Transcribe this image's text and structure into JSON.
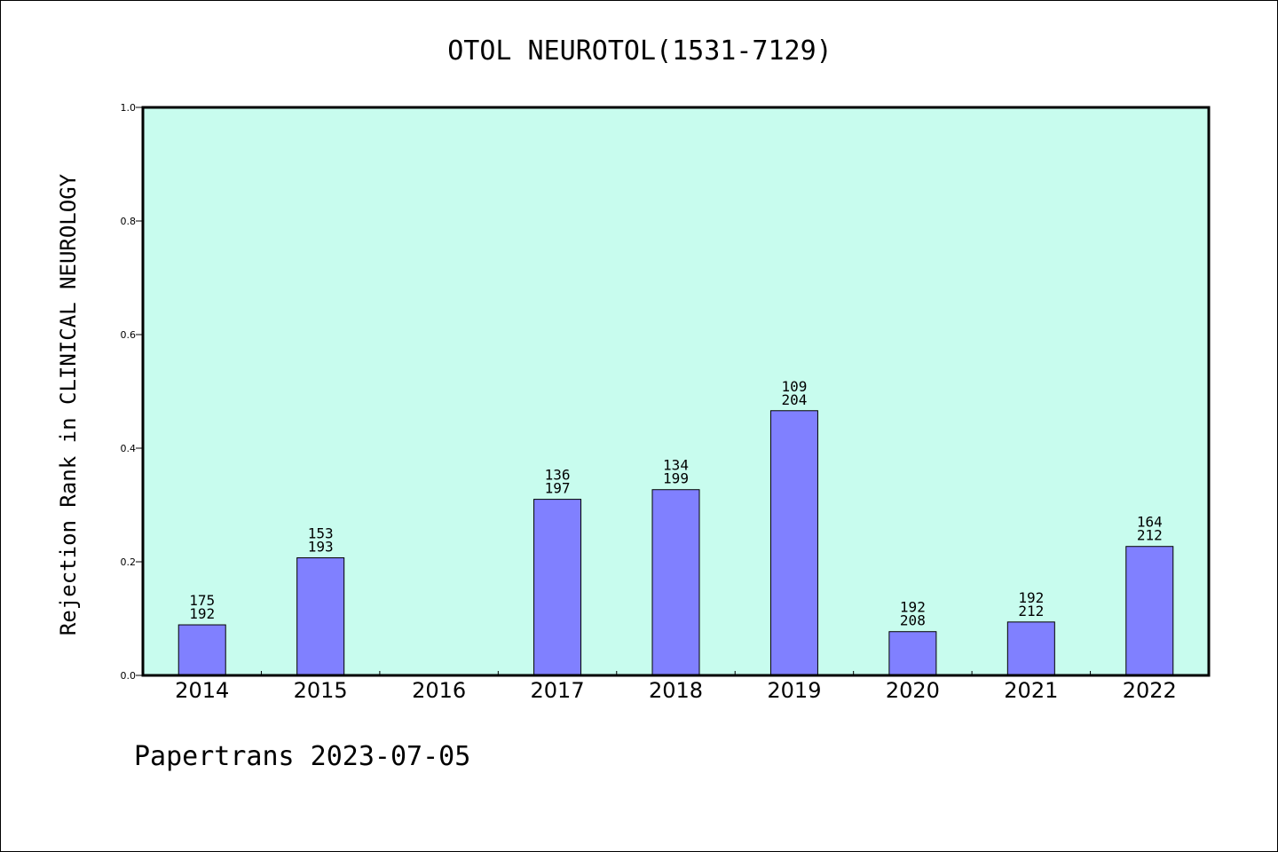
{
  "footer": "Papertrans 2023-07-05",
  "chart_data": {
    "type": "bar",
    "title": "OTOL NEUROTOL(1531-7129)",
    "xlabel": "",
    "ylabel": "Rejection Rank in CLINICAL NEUROLOGY",
    "ylim": [
      0,
      1.0
    ],
    "yticks": [
      "0.0",
      "0.2",
      "0.4",
      "0.6",
      "0.8",
      "1.0"
    ],
    "categories": [
      "2014",
      "2015",
      "2016",
      "2017",
      "2018",
      "2019",
      "2020",
      "2021",
      "2022"
    ],
    "values": [
      0.089,
      0.207,
      null,
      0.31,
      0.327,
      0.466,
      0.077,
      0.094,
      0.227
    ],
    "labels_top": [
      "175",
      "153",
      "",
      "136",
      "134",
      "109",
      "192",
      "192",
      "164"
    ],
    "labels_bottom": [
      "192",
      "193",
      "",
      "197",
      "199",
      "204",
      "208",
      "212",
      "212"
    ],
    "grid": false,
    "colors": {
      "plot_bg": "#c8fcee",
      "bar": "#8080ff",
      "frame": "#000000"
    }
  }
}
